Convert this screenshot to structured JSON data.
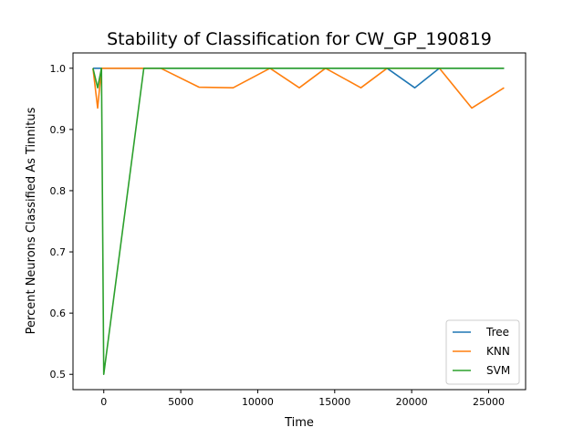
{
  "chart_data": {
    "type": "line",
    "title": "Stability of Classification for CW_GP_190819",
    "xlabel": "Time",
    "ylabel": "Percent Neurons Classified As Tinnitus",
    "xlim": [
      -2000,
      27400
    ],
    "ylim": [
      0.475,
      1.025
    ],
    "xticks": [
      0,
      5000,
      10000,
      15000,
      20000,
      25000
    ],
    "xtick_labels": [
      "0",
      "5000",
      "10000",
      "15000",
      "20000",
      "25000"
    ],
    "yticks": [
      0.5,
      0.6,
      0.7,
      0.8,
      0.9,
      1.0
    ],
    "ytick_labels": [
      "0.5",
      "0.6",
      "0.7",
      "0.8",
      "0.9",
      "1.0"
    ],
    "grid": false,
    "legend_position": "lower-right",
    "series": [
      {
        "name": "Tree",
        "color": "#1f77b4",
        "x": [
          -700,
          -400,
          -150,
          0,
          1000,
          3000,
          6000,
          9000,
          12000,
          15000,
          18400,
          20200,
          21800,
          26000
        ],
        "y": [
          1.0,
          1.0,
          1.0,
          1.0,
          1.0,
          1.0,
          1.0,
          1.0,
          1.0,
          1.0,
          1.0,
          0.968,
          1.0,
          1.0
        ]
      },
      {
        "name": "KNN",
        "color": "#ff7f0e",
        "x": [
          -700,
          -400,
          -150,
          0,
          2600,
          3700,
          6200,
          8400,
          10800,
          12700,
          14400,
          16700,
          18400,
          20200,
          21800,
          23900,
          26000
        ],
        "y": [
          1.0,
          0.935,
          1.0,
          1.0,
          1.0,
          1.0,
          0.969,
          0.968,
          1.0,
          0.968,
          1.0,
          0.968,
          1.0,
          1.0,
          1.0,
          0.935,
          0.968
        ]
      },
      {
        "name": "SVM",
        "color": "#2ca02c",
        "x": [
          -700,
          -400,
          -150,
          0,
          2600,
          5000,
          10000,
          15000,
          20000,
          26000
        ],
        "y": [
          1.0,
          0.968,
          1.0,
          0.5,
          1.0,
          1.0,
          1.0,
          1.0,
          1.0,
          1.0
        ]
      }
    ]
  }
}
